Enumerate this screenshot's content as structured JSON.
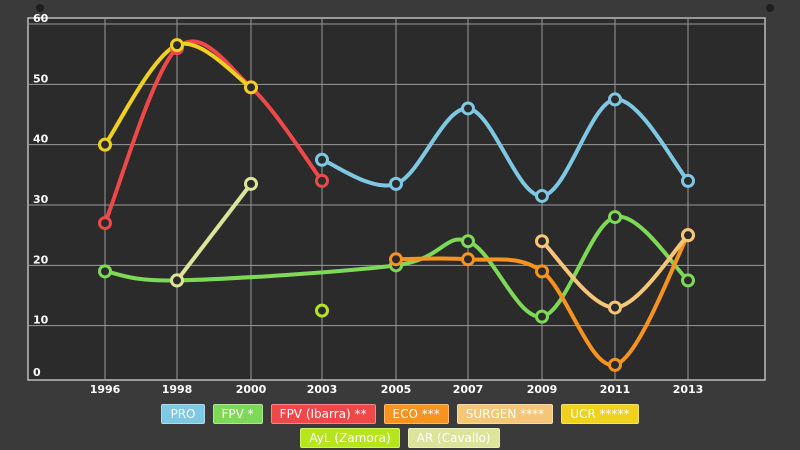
{
  "chart_data": {
    "type": "line",
    "title": "",
    "xlabel": "",
    "ylabel": "",
    "ylim": [
      0,
      60
    ],
    "yticks": [
      0,
      10,
      20,
      30,
      40,
      50,
      60
    ],
    "categories": [
      "1996",
      "1998",
      "2000",
      "2003",
      "2005",
      "2007",
      "2009",
      "2011",
      "2013"
    ],
    "grid": true,
    "legend_position": "bottom",
    "series": [
      {
        "name": "PRO",
        "color": "#7ec8e3",
        "values": [
          null,
          null,
          null,
          37.5,
          33.5,
          46,
          31.5,
          47.5,
          34
        ]
      },
      {
        "name": "FPV *",
        "color": "#7ed957",
        "values": [
          19,
          17.5,
          null,
          null,
          20,
          24,
          11.5,
          28,
          17.5
        ]
      },
      {
        "name": "FPV (Ibarra) **",
        "color": "#f04848",
        "values": [
          27,
          56,
          49.5,
          34,
          null,
          null,
          null,
          null,
          null
        ]
      },
      {
        "name": "ECO ***",
        "color": "#f7931e",
        "values": [
          null,
          null,
          null,
          null,
          21,
          21,
          19,
          3.5,
          25
        ]
      },
      {
        "name": "SURGEN ****",
        "color": "#f5c678",
        "values": [
          null,
          null,
          null,
          null,
          null,
          null,
          24,
          13,
          25
        ]
      },
      {
        "name": "UCR *****",
        "color": "#f0d21e",
        "values": [
          40,
          56.5,
          49.5,
          null,
          null,
          null,
          null,
          null,
          null
        ]
      },
      {
        "name": "AyL (Zamora)",
        "color": "#b5e61d",
        "values": [
          null,
          null,
          null,
          12.5,
          null,
          null,
          null,
          null,
          null
        ]
      },
      {
        "name": "AR (Cavallo)",
        "color": "#dce49a",
        "values": [
          null,
          17.5,
          33.5,
          null,
          null,
          null,
          null,
          null,
          null
        ]
      }
    ]
  }
}
